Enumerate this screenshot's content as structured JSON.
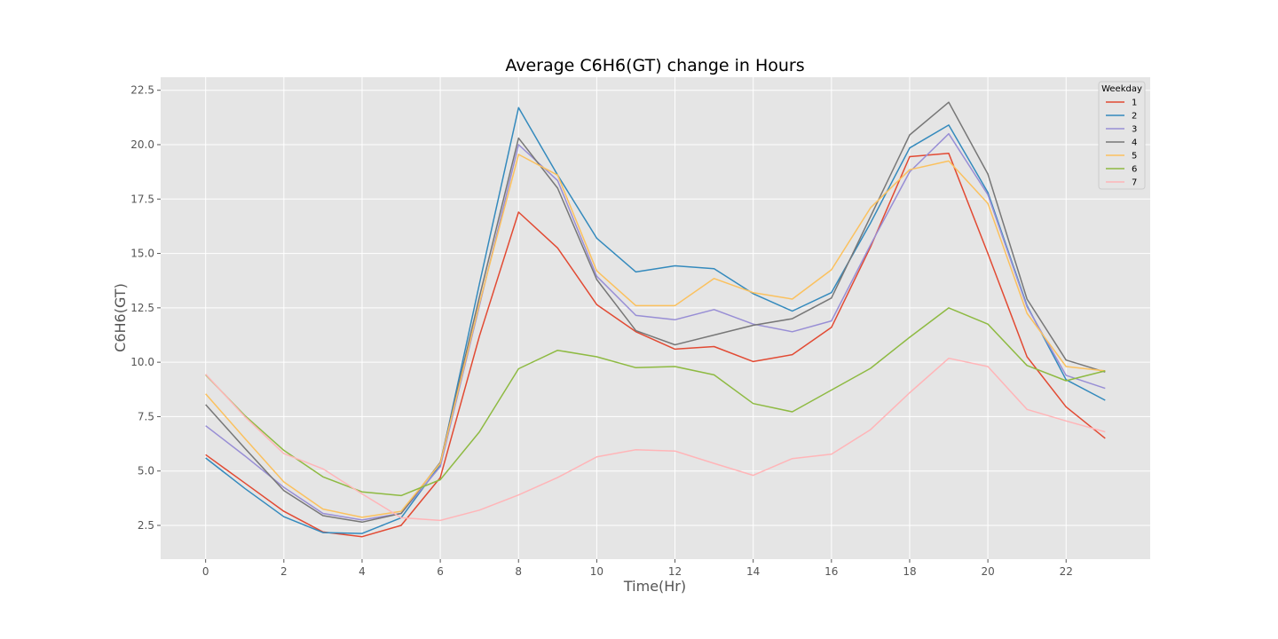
{
  "chart_data": {
    "type": "line",
    "title": "Average C6H6(GT) change in Hours",
    "xlabel": "Time(Hr)",
    "ylabel": "C6H6(GT)",
    "x": [
      0,
      1,
      2,
      3,
      4,
      5,
      6,
      7,
      8,
      9,
      10,
      11,
      12,
      13,
      14,
      15,
      16,
      17,
      18,
      19,
      20,
      21,
      22,
      23
    ],
    "xlim": [
      -1.15,
      24.15
    ],
    "ylim": [
      0.95,
      23.1
    ],
    "x_ticks": [
      0,
      2,
      4,
      6,
      8,
      10,
      12,
      14,
      16,
      18,
      20,
      22
    ],
    "y_ticks": [
      2.5,
      5.0,
      7.5,
      10.0,
      12.5,
      15.0,
      17.5,
      20.0,
      22.5
    ],
    "y_tick_labels": [
      "2.5",
      "5.0",
      "7.5",
      "10.0",
      "12.5",
      "15.0",
      "17.5",
      "20.0",
      "22.5"
    ],
    "grid": true,
    "legend": {
      "title": "Weekday",
      "position": "top-right"
    },
    "series": [
      {
        "name": "1",
        "color": "#E24A33",
        "values": [
          5.75,
          4.45,
          3.15,
          2.2,
          1.98,
          2.5,
          4.7,
          11.2,
          16.9,
          15.25,
          12.65,
          11.4,
          10.6,
          10.72,
          10.03,
          10.35,
          11.6,
          15.3,
          19.45,
          19.6,
          15.0,
          10.25,
          7.95,
          6.5
        ]
      },
      {
        "name": "2",
        "color": "#348ABD",
        "values": [
          5.6,
          4.2,
          2.9,
          2.17,
          2.13,
          2.85,
          5.3,
          13.6,
          21.7,
          18.6,
          15.7,
          14.15,
          14.43,
          14.3,
          13.15,
          12.35,
          13.2,
          16.4,
          19.85,
          20.9,
          17.8,
          12.6,
          9.2,
          8.25
        ]
      },
      {
        "name": "3",
        "color": "#988ED5",
        "values": [
          7.08,
          5.7,
          4.25,
          3.05,
          2.75,
          3.05,
          5.2,
          12.6,
          20.0,
          18.35,
          13.95,
          12.15,
          11.95,
          12.42,
          11.75,
          11.4,
          11.9,
          15.4,
          18.75,
          20.5,
          17.7,
          12.55,
          9.4,
          8.8
        ]
      },
      {
        "name": "4",
        "color": "#777777",
        "values": [
          8.05,
          6.05,
          4.1,
          2.95,
          2.65,
          3.05,
          5.4,
          13.0,
          20.3,
          18.0,
          13.8,
          11.45,
          10.8,
          11.25,
          11.7,
          12.0,
          12.95,
          16.7,
          20.45,
          21.95,
          18.65,
          12.9,
          10.1,
          9.55
        ]
      },
      {
        "name": "5",
        "color": "#FBC15E",
        "values": [
          8.55,
          6.5,
          4.5,
          3.25,
          2.87,
          3.15,
          5.35,
          12.7,
          19.55,
          18.6,
          14.2,
          12.6,
          12.6,
          13.85,
          13.2,
          12.9,
          14.25,
          17.1,
          18.85,
          19.25,
          17.3,
          12.25,
          9.8,
          9.6
        ]
      },
      {
        "name": "6",
        "color": "#8EBA42",
        "values": [
          9.42,
          7.55,
          5.95,
          4.73,
          4.04,
          3.87,
          4.6,
          6.8,
          9.7,
          10.55,
          10.25,
          9.75,
          9.8,
          9.42,
          8.1,
          7.72,
          8.72,
          9.72,
          11.15,
          12.5,
          11.75,
          9.85,
          9.15,
          9.6
        ]
      },
      {
        "name": "7",
        "color": "#FFB5B8",
        "values": [
          9.45,
          7.5,
          5.8,
          5.1,
          3.95,
          2.85,
          2.73,
          3.2,
          3.9,
          4.7,
          5.65,
          5.98,
          5.92,
          5.35,
          4.8,
          5.57,
          5.77,
          6.9,
          8.6,
          10.18,
          9.8,
          7.83,
          7.3,
          6.8
        ]
      }
    ]
  }
}
